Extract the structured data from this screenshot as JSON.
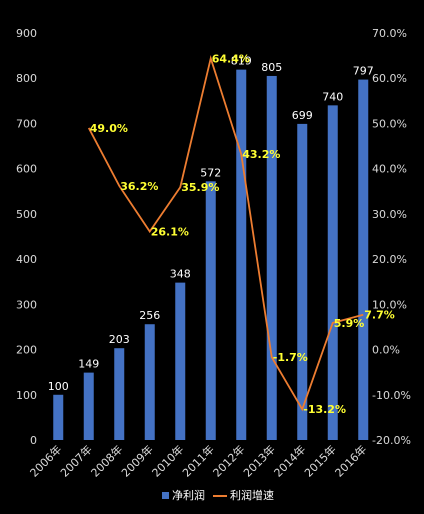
{
  "chart_data": {
    "type": "bar",
    "categories": [
      "2006年",
      "2007年",
      "2008年",
      "2009年",
      "2010年",
      "2011年",
      "2012年",
      "2013年",
      "2014年",
      "2015年",
      "2016年"
    ],
    "series": [
      {
        "name": "净利润",
        "type": "bar",
        "axis": "left",
        "color": "#4472c4",
        "values": [
          100,
          149,
          203,
          256,
          348,
          572,
          819,
          805,
          699,
          740,
          797
        ],
        "labels": [
          "100",
          "149",
          "203",
          "256",
          "348",
          "572",
          "819",
          "805",
          "699",
          "740",
          "797"
        ]
      },
      {
        "name": "利润增速",
        "type": "line",
        "axis": "right",
        "color": "#ed7d31",
        "values": [
          null,
          49.0,
          36.2,
          26.1,
          35.9,
          64.4,
          43.2,
          -1.7,
          -13.2,
          5.9,
          7.7
        ],
        "labels": [
          "",
          "49.0%",
          "36.2%",
          "26.1%",
          "35.9%",
          "64.4%",
          "43.2%",
          "-1.7%",
          "-13.2%",
          "5.9%",
          "7.7%"
        ]
      }
    ],
    "left_axis": {
      "ylim": [
        0,
        900
      ],
      "ticks": [
        "0",
        "100",
        "200",
        "300",
        "400",
        "500",
        "600",
        "700",
        "800",
        "900"
      ]
    },
    "right_axis": {
      "ylim": [
        -20,
        70
      ],
      "ticks": [
        "-20.0%",
        "-10.0%",
        "0.0%",
        "10.0%",
        "20.0%",
        "30.0%",
        "40.0%",
        "50.0%",
        "60.0%",
        "70.0%"
      ]
    },
    "grid": false,
    "legend_position": "bottom"
  }
}
